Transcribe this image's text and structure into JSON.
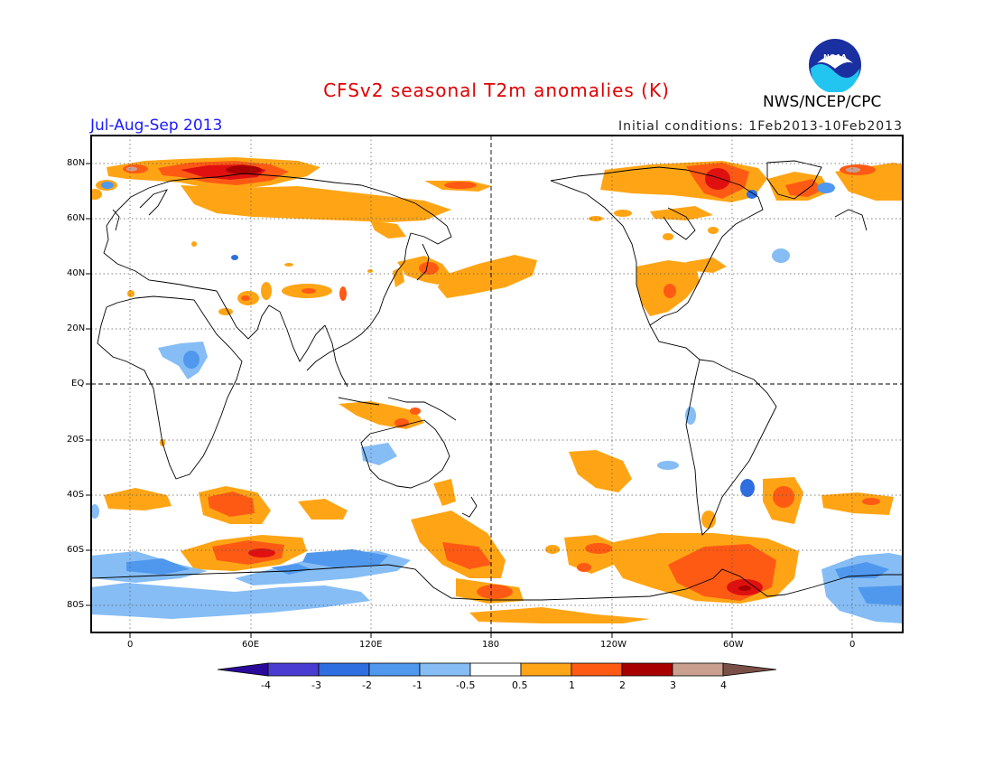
{
  "header": {
    "title": "CFSv2 seasonal T2m anomalies (K)",
    "agency": "NWS/NCEP/CPC",
    "period": "Jul-Aug-Sep 2013",
    "initial_conditions": "Initial conditions: 1Feb2013-10Feb2013",
    "logo_text": "NOAA"
  },
  "map": {
    "projection": "equirectangular",
    "central_longitude": 180,
    "lat_ticks": [
      "80N",
      "60N",
      "40N",
      "20N",
      "EQ",
      "20S",
      "40S",
      "60S",
      "80S"
    ],
    "lon_ticks": [
      "0",
      "60E",
      "120E",
      "180",
      "120W",
      "60W",
      "0"
    ],
    "grid": "dotted",
    "reference_lines": [
      "EQ",
      "180"
    ]
  },
  "colorbar": {
    "labels": [
      "-4",
      "-3",
      "-2",
      "-1",
      "-0.5",
      "0.5",
      "1",
      "2",
      "3",
      "4"
    ],
    "colors": [
      "#2a0a9a",
      "#4a3cd0",
      "#2e6ee0",
      "#4f98ee",
      "#86bdf5",
      "#ffffff",
      "#ffa515",
      "#ff5a14",
      "#e01010",
      "#a80000",
      "#c9a090",
      "#7a5046"
    ]
  }
}
